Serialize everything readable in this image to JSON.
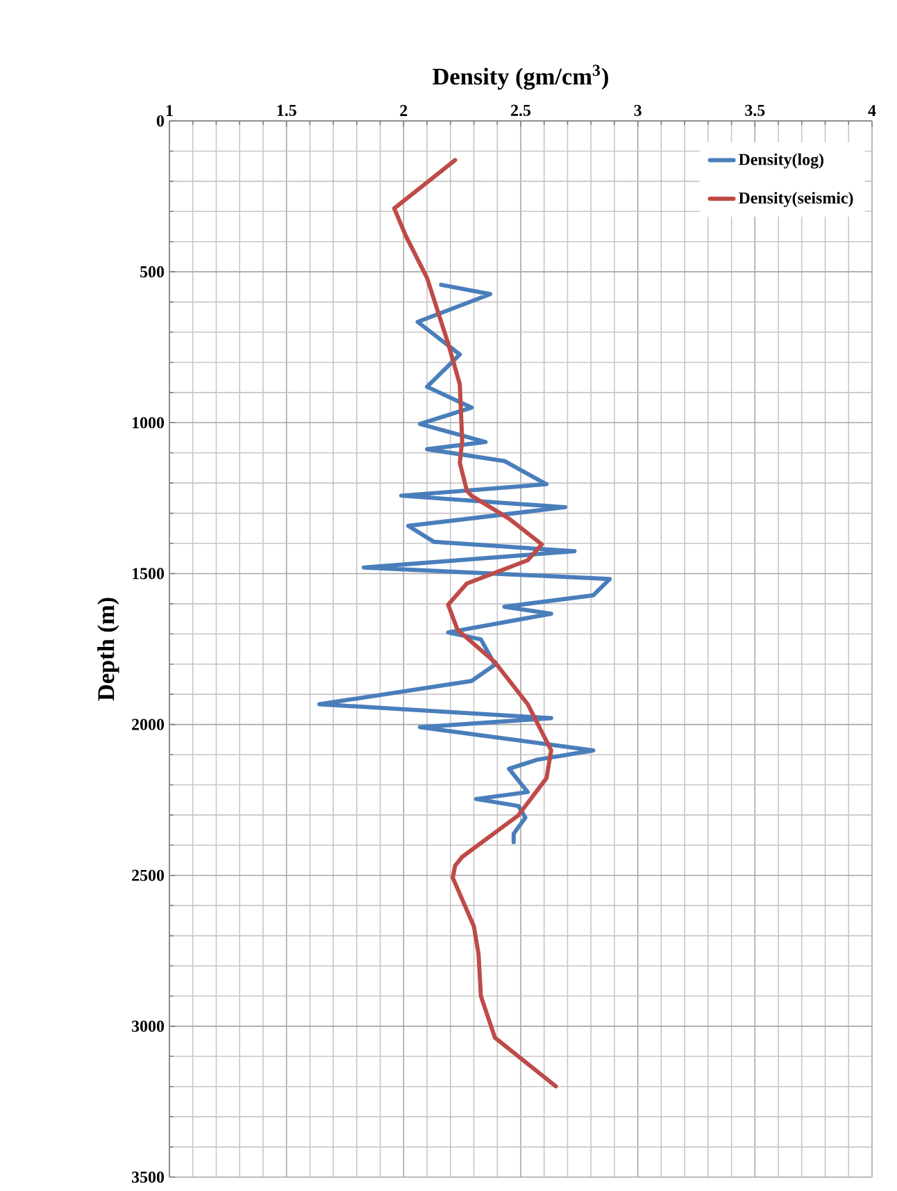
{
  "chart_data": {
    "type": "line",
    "xlabel": "Density (gm/cm$^{3}$)",
    "ylabel": "Depth (m)",
    "xlim": [
      1,
      4
    ],
    "xticks": [
      1,
      1.5,
      2,
      2.5,
      3,
      3.5,
      4
    ],
    "ylim": [
      3500,
      0
    ],
    "yticks": [
      0,
      500,
      1000,
      1500,
      2000,
      2500,
      3000,
      3500
    ],
    "grid": true,
    "legend": "top right",
    "marker": "none",
    "line_style": "solid",
    "series": [
      {
        "name": "Density(log)",
        "color": "#4a7ebb",
        "x": [
          2.16,
          2.37,
          2.06,
          2.24,
          2.1,
          2.29,
          2.07,
          2.35,
          2.1,
          2.43,
          2.61,
          1.99,
          2.69,
          2.02,
          2.13,
          2.73,
          1.83,
          2.88,
          2.81,
          2.43,
          2.63,
          2.19,
          2.33,
          2.39,
          2.29,
          1.64,
          2.63,
          2.07,
          2.81,
          2.57,
          2.45,
          2.53,
          2.31,
          2.49,
          2.52,
          2.47,
          2.47
        ],
        "values": [
          543,
          574,
          666,
          774,
          881,
          950,
          1004,
          1064,
          1088,
          1127,
          1204,
          1242,
          1280,
          1342,
          1395,
          1426,
          1480,
          1518,
          1572,
          1610,
          1633,
          1695,
          1718,
          1802,
          1856,
          1933,
          1979,
          2009,
          2086,
          2117,
          2147,
          2224,
          2247,
          2270,
          2309,
          2362,
          2390
        ]
      },
      {
        "name": "Density(seismic)",
        "color": "#be4b48",
        "x": [
          2.22,
          1.96,
          2.01,
          2.1,
          2.19,
          2.24,
          2.25,
          2.24,
          2.27,
          2.29,
          2.45,
          2.59,
          2.53,
          2.27,
          2.19,
          2.23,
          2.39,
          2.53,
          2.63,
          2.61,
          2.49,
          2.25,
          2.22,
          2.21,
          2.3,
          2.32,
          2.33,
          2.39,
          2.65
        ],
        "values": [
          130,
          290,
          382,
          520,
          737,
          873,
          1059,
          1133,
          1225,
          1242,
          1318,
          1403,
          1456,
          1533,
          1603,
          1686,
          1794,
          1933,
          2086,
          2178,
          2301,
          2439,
          2468,
          2508,
          2669,
          2761,
          2900,
          3038,
          3199
        ]
      }
    ]
  }
}
